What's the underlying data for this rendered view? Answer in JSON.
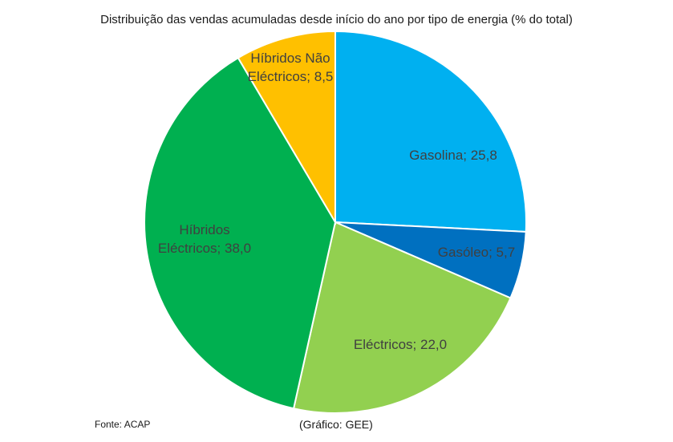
{
  "chart_data": {
    "type": "pie",
    "title": "Distribuição das vendas acumuladas desde início do ano por tipo de energia (% do total)",
    "slices": [
      {
        "name": "Gasolina",
        "label": "Gasolina; 25,8",
        "value": 25.8,
        "color": "#00b0f0"
      },
      {
        "name": "Gasóleo",
        "label": "Gasóleo; 5,7",
        "value": 5.7,
        "color": "#0070c0"
      },
      {
        "name": "Eléctricos",
        "label": "Eléctricos; 22,0",
        "value": 22.0,
        "color": "#92d050"
      },
      {
        "name": "Híbridos Eléctricos",
        "label": "Híbridos Eléctricos; 38,0",
        "value": 38.0,
        "color": "#00b050"
      },
      {
        "name": "Híbridos Não Eléctricos",
        "label": "Híbridos Não Eléctricos; 8,5",
        "value": 8.5,
        "color": "#ffc000"
      }
    ],
    "start_angle": "12 o'clock",
    "direction": "clockwise",
    "legend": "none"
  },
  "notes": {
    "source": "Fonte: ACAP",
    "credit": "(Gráfico: GEE)"
  }
}
